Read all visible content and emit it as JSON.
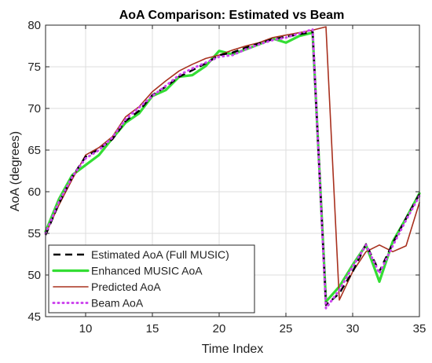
{
  "chart_data": {
    "type": "line",
    "title": "AoA Comparison: Estimated vs Beam",
    "xlabel": "Time Index",
    "ylabel": "AoA (degrees)",
    "xlim": [
      7,
      35
    ],
    "ylim": [
      45,
      80
    ],
    "x_ticks": [
      10,
      15,
      20,
      25,
      30,
      35
    ],
    "y_ticks": [
      45,
      50,
      55,
      60,
      65,
      70,
      75,
      80
    ],
    "grid": true,
    "legend_position": "bottom-left",
    "x": [
      7,
      8,
      9,
      10,
      11,
      12,
      13,
      14,
      15,
      16,
      17,
      18,
      19,
      20,
      21,
      22,
      23,
      24,
      25,
      26,
      27,
      28,
      29,
      30,
      31,
      32,
      33,
      34,
      35
    ],
    "series": [
      {
        "name": "Estimated AoA (Full MUSIC)",
        "color": "#000000",
        "style": "dashed",
        "values": [
          54.8,
          58.6,
          61.8,
          64.2,
          65.1,
          66.3,
          68.5,
          69.7,
          71.6,
          72.6,
          73.8,
          74.6,
          75.4,
          76.4,
          76.7,
          77.3,
          77.8,
          78.3,
          78.6,
          78.9,
          79.2,
          46.4,
          47.8,
          50.4,
          53.7,
          50.4,
          53.8,
          56.8,
          59.7
        ]
      },
      {
        "name": "Enhanced MUSIC AoA",
        "color": "#33dd33",
        "style": "solid",
        "values": [
          55.2,
          59.1,
          62.0,
          63.2,
          64.4,
          66.4,
          68.3,
          69.4,
          71.5,
          72.2,
          73.8,
          74.0,
          75.1,
          76.9,
          76.5,
          77.1,
          77.7,
          78.4,
          77.9,
          78.7,
          79.1,
          46.8,
          48.6,
          51.2,
          53.6,
          49.2,
          54.0,
          56.8,
          59.8
        ]
      },
      {
        "name": "Predicted AoA",
        "color": "#a8301e",
        "style": "solid",
        "values": [
          54.9,
          58.4,
          61.5,
          64.4,
          65.3,
          66.6,
          69.0,
          70.2,
          72.0,
          73.3,
          74.5,
          75.3,
          76.0,
          76.4,
          77.0,
          77.5,
          77.9,
          78.5,
          78.8,
          79.1,
          79.4,
          79.8,
          47.0,
          50.4,
          52.8,
          53.6,
          52.8,
          53.5,
          58.7
        ]
      },
      {
        "name": "Beam AoA",
        "color": "#cc44ee",
        "style": "dotted",
        "values": [
          55.0,
          58.8,
          61.8,
          64.0,
          65.0,
          66.5,
          68.7,
          70.1,
          71.5,
          72.7,
          74.0,
          74.8,
          75.5,
          76.2,
          76.4,
          77.1,
          77.7,
          78.2,
          78.5,
          79.0,
          79.5,
          46.0,
          48.2,
          51.0,
          53.6,
          50.2,
          53.5,
          56.6,
          59.5
        ]
      }
    ]
  }
}
